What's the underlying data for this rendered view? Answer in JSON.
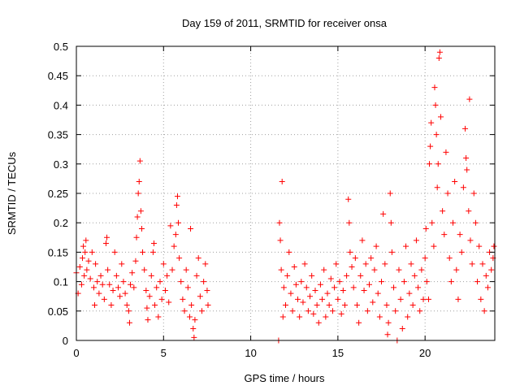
{
  "chart_data": {
    "type": "scatter",
    "title": "Day 159 of 2011, SRMTID for receiver onsa",
    "xlabel": "GPS time / hours",
    "ylabel": "SRMTID / TECUs",
    "xlim": [
      0,
      24
    ],
    "ylim": [
      0,
      0.5
    ],
    "x_ticks": [
      0,
      5,
      10,
      15,
      20
    ],
    "x_tick_labels": [
      "0",
      "5",
      "10",
      "15",
      "20"
    ],
    "y_ticks": [
      0,
      0.05,
      0.1,
      0.15,
      0.2,
      0.25,
      0.3,
      0.35,
      0.4,
      0.45,
      0.5
    ],
    "y_tick_labels": [
      "0",
      "0.05",
      "0.1",
      "0.15",
      "0.2",
      "0.25",
      "0.3",
      "0.35",
      "0.4",
      "0.45",
      "0.5"
    ],
    "grid": true,
    "marker": "+",
    "color": "#ff0000",
    "data_gap": [
      7.6,
      11.5
    ],
    "series": [
      {
        "name": "SRMTID",
        "points": [
          [
            0.0,
            0.115
          ],
          [
            0.1,
            0.08
          ],
          [
            0.2,
            0.125
          ],
          [
            0.3,
            0.095
          ],
          [
            0.35,
            0.14
          ],
          [
            0.4,
            0.16
          ],
          [
            0.45,
            0.11
          ],
          [
            0.5,
            0.15
          ],
          [
            0.55,
            0.17
          ],
          [
            0.6,
            0.12
          ],
          [
            0.7,
            0.135
          ],
          [
            0.8,
            0.105
          ],
          [
            0.9,
            0.15
          ],
          [
            1.0,
            0.09
          ],
          [
            1.05,
            0.06
          ],
          [
            1.1,
            0.13
          ],
          [
            1.2,
            0.1
          ],
          [
            1.3,
            0.08
          ],
          [
            1.4,
            0.11
          ],
          [
            1.5,
            0.095
          ],
          [
            1.6,
            0.07
          ],
          [
            1.7,
            0.165
          ],
          [
            1.75,
            0.175
          ],
          [
            1.8,
            0.12
          ],
          [
            1.9,
            0.095
          ],
          [
            2.0,
            0.06
          ],
          [
            2.1,
            0.085
          ],
          [
            2.2,
            0.15
          ],
          [
            2.3,
            0.11
          ],
          [
            2.4,
            0.09
          ],
          [
            2.5,
            0.075
          ],
          [
            2.6,
            0.13
          ],
          [
            2.7,
            0.1
          ],
          [
            2.8,
            0.08
          ],
          [
            2.9,
            0.06
          ],
          [
            3.0,
            0.05
          ],
          [
            3.05,
            0.03
          ],
          [
            3.1,
            0.095
          ],
          [
            3.2,
            0.115
          ],
          [
            3.3,
            0.09
          ],
          [
            3.4,
            0.135
          ],
          [
            3.45,
            0.175
          ],
          [
            3.5,
            0.21
          ],
          [
            3.55,
            0.25
          ],
          [
            3.6,
            0.27
          ],
          [
            3.65,
            0.305
          ],
          [
            3.7,
            0.22
          ],
          [
            3.75,
            0.19
          ],
          [
            3.8,
            0.15
          ],
          [
            3.9,
            0.12
          ],
          [
            4.0,
            0.085
          ],
          [
            4.05,
            0.055
          ],
          [
            4.1,
            0.035
          ],
          [
            4.2,
            0.075
          ],
          [
            4.3,
            0.11
          ],
          [
            4.4,
            0.15
          ],
          [
            4.45,
            0.165
          ],
          [
            4.5,
            0.06
          ],
          [
            4.6,
            0.09
          ],
          [
            4.7,
            0.04
          ],
          [
            4.8,
            0.1
          ],
          [
            4.9,
            0.07
          ],
          [
            5.0,
            0.13
          ],
          [
            5.1,
            0.085
          ],
          [
            5.2,
            0.11
          ],
          [
            5.3,
            0.065
          ],
          [
            5.4,
            0.195
          ],
          [
            5.5,
            0.12
          ],
          [
            5.6,
            0.16
          ],
          [
            5.7,
            0.18
          ],
          [
            5.75,
            0.23
          ],
          [
            5.8,
            0.245
          ],
          [
            5.85,
            0.2
          ],
          [
            5.9,
            0.14
          ],
          [
            6.0,
            0.1
          ],
          [
            6.1,
            0.07
          ],
          [
            6.2,
            0.05
          ],
          [
            6.3,
            0.12
          ],
          [
            6.4,
            0.09
          ],
          [
            6.5,
            0.04
          ],
          [
            6.55,
            0.19
          ],
          [
            6.6,
            0.06
          ],
          [
            6.7,
            0.02
          ],
          [
            6.75,
            0.005
          ],
          [
            6.8,
            0.035
          ],
          [
            6.9,
            0.11
          ],
          [
            7.0,
            0.14
          ],
          [
            7.1,
            0.075
          ],
          [
            7.2,
            0.05
          ],
          [
            7.3,
            0.1
          ],
          [
            7.4,
            0.13
          ],
          [
            7.5,
            0.085
          ],
          [
            7.55,
            0.06
          ],
          [
            11.6,
            0.0
          ],
          [
            11.65,
            0.2
          ],
          [
            11.7,
            0.17
          ],
          [
            11.75,
            0.12
          ],
          [
            11.8,
            0.27
          ],
          [
            11.85,
            0.04
          ],
          [
            11.9,
            0.09
          ],
          [
            12.0,
            0.06
          ],
          [
            12.1,
            0.11
          ],
          [
            12.2,
            0.15
          ],
          [
            12.3,
            0.08
          ],
          [
            12.4,
            0.05
          ],
          [
            12.5,
            0.125
          ],
          [
            12.6,
            0.095
          ],
          [
            12.7,
            0.07
          ],
          [
            12.8,
            0.04
          ],
          [
            12.9,
            0.1
          ],
          [
            13.0,
            0.065
          ],
          [
            13.1,
            0.13
          ],
          [
            13.2,
            0.09
          ],
          [
            13.3,
            0.05
          ],
          [
            13.4,
            0.075
          ],
          [
            13.5,
            0.11
          ],
          [
            13.6,
            0.045
          ],
          [
            13.7,
            0.085
          ],
          [
            13.8,
            0.06
          ],
          [
            13.9,
            0.03
          ],
          [
            14.0,
            0.095
          ],
          [
            14.1,
            0.07
          ],
          [
            14.2,
            0.12
          ],
          [
            14.3,
            0.04
          ],
          [
            14.4,
            0.08
          ],
          [
            14.5,
            0.06
          ],
          [
            14.6,
            0.105
          ],
          [
            14.7,
            0.05
          ],
          [
            14.8,
            0.09
          ],
          [
            14.9,
            0.13
          ],
          [
            15.0,
            0.07
          ],
          [
            15.1,
            0.1
          ],
          [
            15.2,
            0.045
          ],
          [
            15.3,
            0.085
          ],
          [
            15.4,
            0.06
          ],
          [
            15.5,
            0.11
          ],
          [
            15.6,
            0.24
          ],
          [
            15.65,
            0.2
          ],
          [
            15.7,
            0.15
          ],
          [
            15.8,
            0.125
          ],
          [
            15.9,
            0.09
          ],
          [
            16.0,
            0.14
          ],
          [
            16.1,
            0.06
          ],
          [
            16.2,
            0.03
          ],
          [
            16.3,
            0.11
          ],
          [
            16.4,
            0.17
          ],
          [
            16.5,
            0.085
          ],
          [
            16.6,
            0.13
          ],
          [
            16.7,
            0.05
          ],
          [
            16.8,
            0.095
          ],
          [
            16.9,
            0.14
          ],
          [
            17.0,
            0.065
          ],
          [
            17.1,
            0.12
          ],
          [
            17.2,
            0.16
          ],
          [
            17.3,
            0.08
          ],
          [
            17.4,
            0.04
          ],
          [
            17.5,
            0.1
          ],
          [
            17.6,
            0.215
          ],
          [
            17.7,
            0.13
          ],
          [
            17.8,
            0.06
          ],
          [
            17.85,
            0.01
          ],
          [
            17.9,
            0.03
          ],
          [
            18.0,
            0.25
          ],
          [
            18.05,
            0.2
          ],
          [
            18.1,
            0.15
          ],
          [
            18.2,
            0.09
          ],
          [
            18.3,
            0.05
          ],
          [
            18.4,
            0.0
          ],
          [
            18.5,
            0.12
          ],
          [
            18.6,
            0.07
          ],
          [
            18.7,
            0.02
          ],
          [
            18.8,
            0.1
          ],
          [
            18.9,
            0.16
          ],
          [
            19.0,
            0.04
          ],
          [
            19.1,
            0.08
          ],
          [
            19.2,
            0.13
          ],
          [
            19.3,
            0.06
          ],
          [
            19.4,
            0.11
          ],
          [
            19.5,
            0.17
          ],
          [
            19.6,
            0.09
          ],
          [
            19.7,
            0.05
          ],
          [
            19.8,
            0.12
          ],
          [
            19.9,
            0.07
          ],
          [
            20.0,
            0.14
          ],
          [
            20.05,
            0.19
          ],
          [
            20.1,
            0.1
          ],
          [
            20.2,
            0.07
          ],
          [
            20.25,
            0.3
          ],
          [
            20.3,
            0.33
          ],
          [
            20.35,
            0.37
          ],
          [
            20.4,
            0.2
          ],
          [
            20.5,
            0.16
          ],
          [
            20.55,
            0.43
          ],
          [
            20.6,
            0.4
          ],
          [
            20.65,
            0.35
          ],
          [
            20.7,
            0.26
          ],
          [
            20.75,
            0.3
          ],
          [
            20.8,
            0.48
          ],
          [
            20.85,
            0.49
          ],
          [
            20.9,
            0.38
          ],
          [
            21.0,
            0.22
          ],
          [
            21.1,
            0.18
          ],
          [
            21.2,
            0.32
          ],
          [
            21.3,
            0.25
          ],
          [
            21.4,
            0.14
          ],
          [
            21.5,
            0.1
          ],
          [
            21.6,
            0.2
          ],
          [
            21.7,
            0.27
          ],
          [
            21.8,
            0.12
          ],
          [
            21.9,
            0.07
          ],
          [
            22.0,
            0.18
          ],
          [
            22.1,
            0.15
          ],
          [
            22.2,
            0.26
          ],
          [
            22.3,
            0.36
          ],
          [
            22.35,
            0.31
          ],
          [
            22.4,
            0.29
          ],
          [
            22.5,
            0.22
          ],
          [
            22.55,
            0.41
          ],
          [
            22.6,
            0.17
          ],
          [
            22.7,
            0.13
          ],
          [
            22.8,
            0.25
          ],
          [
            22.9,
            0.2
          ],
          [
            23.0,
            0.1
          ],
          [
            23.1,
            0.16
          ],
          [
            23.2,
            0.07
          ],
          [
            23.3,
            0.13
          ],
          [
            23.4,
            0.05
          ],
          [
            23.5,
            0.11
          ],
          [
            23.6,
            0.09
          ],
          [
            23.7,
            0.15
          ],
          [
            23.8,
            0.12
          ],
          [
            23.9,
            0.14
          ],
          [
            23.95,
            0.16
          ]
        ]
      }
    ]
  }
}
